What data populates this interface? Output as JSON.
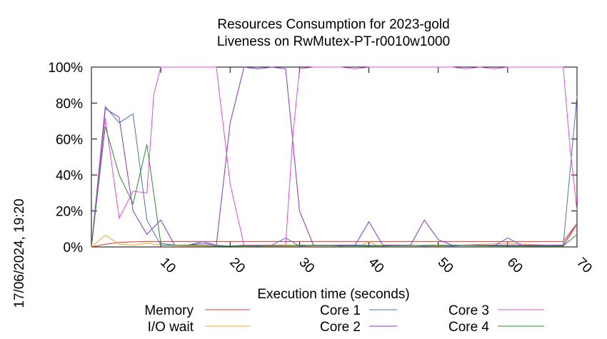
{
  "chart_data": {
    "type": "line",
    "title": [
      "Resources Consumption for 2023-gold",
      "Liveness on RwMutex-PT-r0010w1000"
    ],
    "xlabel": "Execution time (seconds)",
    "ylabel": "",
    "side_label": "17/06/2024, 19:20",
    "xlim": [
      0,
      70
    ],
    "ylim": [
      0,
      100
    ],
    "x_ticks": [
      10,
      20,
      30,
      40,
      50,
      60,
      70
    ],
    "y_ticks": [
      0,
      20,
      40,
      60,
      80,
      100
    ],
    "y_tick_labels": [
      "0%",
      "20%",
      "40%",
      "60%",
      "80%",
      "100%"
    ],
    "grid": false,
    "legend_position": "bottom",
    "series": [
      {
        "name": "Memory",
        "color": "#e8332a",
        "x": [
          0,
          2,
          4,
          6,
          8,
          10,
          12,
          15,
          20,
          30,
          40,
          50,
          60,
          68,
          70
        ],
        "y": [
          0,
          1.5,
          2.5,
          2.8,
          3,
          3,
          3,
          3,
          3,
          3,
          3,
          3,
          3,
          3,
          13
        ]
      },
      {
        "name": "I/O wait",
        "color": "#f5a623",
        "x": [
          0,
          2,
          4,
          6,
          8,
          10,
          15,
          20,
          30,
          39,
          40,
          41,
          50,
          60,
          68,
          70
        ],
        "y": [
          0,
          6.5,
          1.5,
          1,
          2,
          1,
          0.5,
          0.5,
          0.5,
          1,
          3,
          1,
          0.5,
          2,
          0.5,
          12
        ]
      },
      {
        "name": "Core 1",
        "color": "#4a6fd4",
        "x": [
          0,
          2,
          4,
          6,
          8,
          10,
          12,
          14,
          16,
          18,
          20,
          22,
          24,
          26,
          28,
          30,
          32,
          34,
          36,
          38,
          40,
          42,
          44,
          46,
          48,
          50,
          52,
          54,
          56,
          58,
          60,
          62,
          64,
          66,
          68,
          70
        ],
        "y": [
          0,
          78,
          69,
          74,
          15,
          1,
          1,
          1,
          3,
          1,
          0.5,
          1,
          0.5,
          1,
          5,
          0.5,
          1,
          1,
          0.5,
          1,
          1,
          0.5,
          1,
          1,
          0.5,
          1,
          0.5,
          1,
          1,
          0.5,
          5,
          1,
          0.5,
          1,
          0.5,
          84
        ]
      },
      {
        "name": "Core 2",
        "color": "#8b2fd6",
        "x": [
          0,
          2,
          4,
          6,
          8,
          10,
          12,
          14,
          16,
          18,
          20,
          22,
          24,
          26,
          28,
          29,
          30,
          32,
          34,
          36,
          38,
          40,
          42,
          44,
          46,
          48,
          50,
          52,
          54,
          56,
          58,
          60,
          62,
          64,
          66,
          68,
          70
        ],
        "y": [
          0,
          77,
          72,
          20,
          7,
          15,
          1,
          1,
          2,
          1,
          69,
          100,
          99,
          100,
          99,
          60,
          20,
          1,
          1,
          1,
          1,
          14,
          1,
          1,
          1,
          15,
          4,
          1,
          1,
          1,
          1,
          1,
          1,
          1,
          1,
          1,
          13
        ]
      },
      {
        "name": "Core 3",
        "color": "#ee44ee",
        "x": [
          0,
          2,
          4,
          6,
          8,
          9,
          10,
          12,
          14,
          16,
          18,
          20,
          22,
          24,
          26,
          28,
          29,
          30,
          32,
          34,
          36,
          38,
          40,
          42,
          44,
          46,
          48,
          50,
          52,
          54,
          56,
          58,
          60,
          62,
          64,
          66,
          68,
          69,
          70
        ],
        "y": [
          0,
          72,
          16,
          31,
          30,
          85,
          100,
          100,
          100,
          100,
          100,
          35,
          1,
          1,
          1,
          1,
          60,
          99,
          100,
          100,
          100,
          99,
          100,
          100,
          100,
          100,
          100,
          100,
          100,
          99,
          100,
          99,
          100,
          100,
          100,
          100,
          100,
          55,
          20
        ]
      },
      {
        "name": "Core 4",
        "color": "#2e8b2e",
        "x": [
          0,
          2,
          4,
          6,
          8,
          10,
          12,
          14,
          16,
          18,
          20,
          30,
          40,
          50,
          60,
          68,
          70
        ],
        "y": [
          0,
          67,
          40,
          24,
          57,
          2,
          1,
          1,
          1,
          0.5,
          0.5,
          1,
          0.5,
          1,
          0.5,
          0.5,
          7
        ]
      }
    ]
  }
}
